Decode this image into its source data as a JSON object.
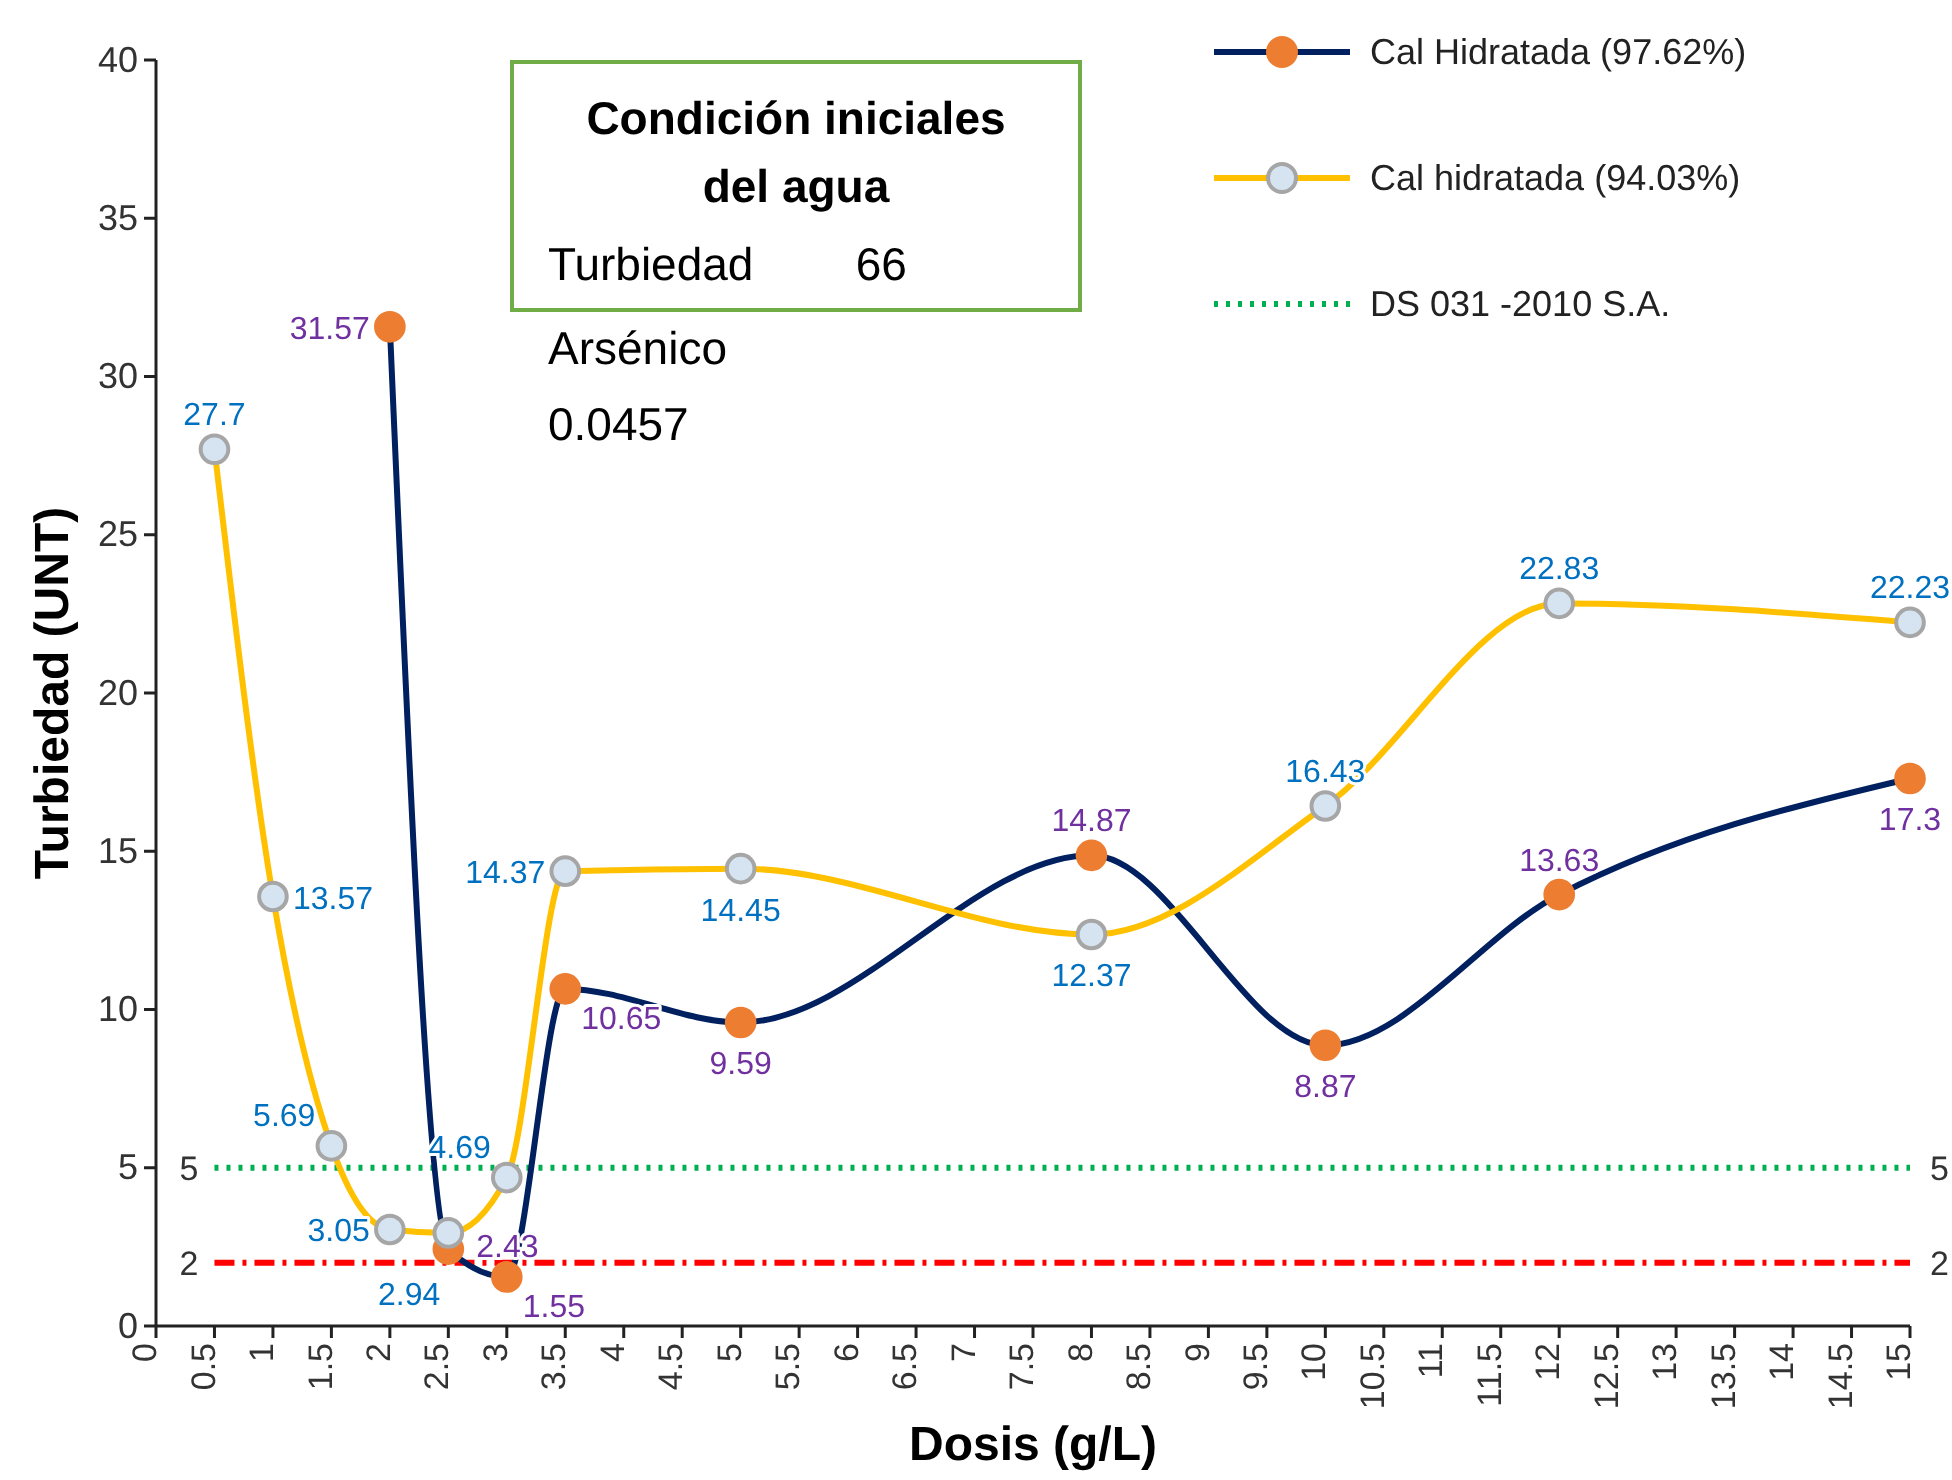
{
  "chart_data": {
    "type": "line",
    "xlabel": "Dosis (g/L)",
    "ylabel": "Turbiedad (UNT)",
    "xlim": [
      0,
      15
    ],
    "xticks": [
      0,
      0.5,
      1,
      1.5,
      2,
      2.5,
      3,
      3.5,
      4,
      4.5,
      5,
      5.5,
      6,
      6.5,
      7,
      7.5,
      8,
      8.5,
      9,
      9.5,
      10,
      10.5,
      11,
      11.5,
      12,
      12.5,
      13,
      13.5,
      14,
      14.5,
      15
    ],
    "ylim": [
      0,
      40
    ],
    "yticks": [
      0,
      5,
      10,
      15,
      20,
      25,
      30,
      35,
      40
    ],
    "series": [
      {
        "name": "Cal Hidratada (97.62%)",
        "color": "#002060",
        "x": [
          2,
          2.5,
          3,
          3.5,
          5,
          8,
          10,
          12,
          15
        ],
        "values": [
          31.57,
          2.43,
          1.55,
          10.65,
          9.59,
          14.87,
          8.87,
          13.63,
          17.3
        ]
      },
      {
        "name": "Cal hidratada (94.03%)",
        "color": "#ffc000",
        "x": [
          0.5,
          1,
          1.5,
          2,
          2.5,
          3,
          3.5,
          5,
          8,
          10,
          12,
          15
        ],
        "values": [
          27.7,
          13.57,
          5.69,
          3.05,
          2.94,
          4.69,
          14.37,
          14.45,
          12.37,
          16.43,
          22.83,
          22.23
        ]
      }
    ],
    "ref_lines": [
      {
        "axis": "y",
        "value": 5,
        "label": "DS 031 -2010 S.A.",
        "color": "#00b050",
        "line_style": "dotted"
      },
      {
        "axis": "y",
        "value": 2,
        "color": "#ff0000",
        "line_style": "dashed"
      }
    ],
    "annotations": [
      "Condición iniciales del agua",
      "Turbiedad        66",
      "Arsénico",
      "0.0457",
      "5",
      "5",
      "2",
      "2"
    ],
    "marker": "circle",
    "line_style": "solid",
    "data_labels": true,
    "legend": "top right",
    "grid": false
  }
}
